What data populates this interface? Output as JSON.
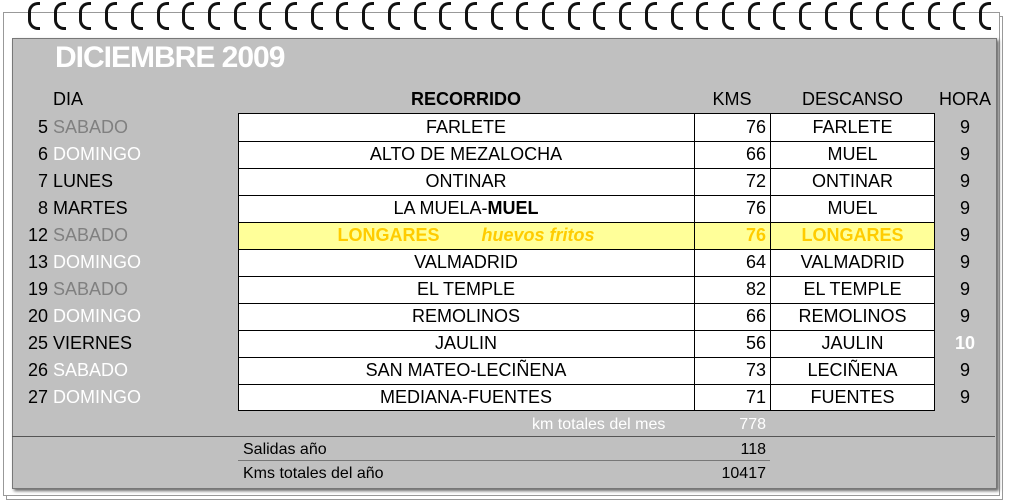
{
  "header": {
    "title": "DICIEMBRE 2009"
  },
  "columns": [
    "DIA",
    "RECORRIDO",
    "KMS",
    "DESCANSO",
    "HORA"
  ],
  "rows": [
    {
      "day": "5",
      "weekday": "SABADO",
      "weekday_color": "gray",
      "route": "FARLETE",
      "kms": "76",
      "rest": "FARLETE",
      "hora": "9"
    },
    {
      "day": "6",
      "weekday": "DOMINGO",
      "weekday_color": "white",
      "route": "ALTO DE MEZALOCHA",
      "kms": "66",
      "rest": "MUEL",
      "hora": "9"
    },
    {
      "day": "7",
      "weekday": "LUNES",
      "weekday_color": "black",
      "route": "ONTINAR",
      "kms": "72",
      "rest": "ONTINAR",
      "hora": "9"
    },
    {
      "day": "8",
      "weekday": "MARTES",
      "weekday_color": "black",
      "route": "LA MUELA-",
      "route_bold": "MUEL",
      "kms": "76",
      "rest": "MUEL",
      "hora": "9"
    },
    {
      "day": "12",
      "weekday": "SABADO",
      "weekday_color": "gray",
      "route": "LONGARES",
      "note": "huevos fritos",
      "highlight": true,
      "kms": "76",
      "rest": "LONGARES",
      "hora": "9"
    },
    {
      "day": "13",
      "weekday": "DOMINGO",
      "weekday_color": "white",
      "route": "VALMADRID",
      "kms": "64",
      "rest": "VALMADRID",
      "hora": "9"
    },
    {
      "day": "19",
      "weekday": "SABADO",
      "weekday_color": "gray",
      "route": "EL TEMPLE",
      "kms": "82",
      "rest": "EL TEMPLE",
      "hora": "9"
    },
    {
      "day": "20",
      "weekday": "DOMINGO",
      "weekday_color": "white",
      "route": "REMOLINOS",
      "kms": "66",
      "rest": "REMOLINOS",
      "hora": "9"
    },
    {
      "day": "25",
      "weekday": "VIERNES",
      "weekday_color": "black",
      "route": "JAULIN",
      "kms": "56",
      "rest": "JAULIN",
      "hora": "10",
      "hora_highlight": true
    },
    {
      "day": "26",
      "weekday": "SABADO",
      "weekday_color": "white",
      "route": "SAN MATEO-LECIÑENA",
      "kms": "73",
      "rest": "LECIÑENA",
      "hora": "9"
    },
    {
      "day": "27",
      "weekday": "DOMINGO",
      "weekday_color": "white",
      "route": "MEDIANA-FUENTES",
      "kms": "71",
      "rest": "FUENTES",
      "hora": "9"
    }
  ],
  "month_total": {
    "label": "km totales del mes",
    "value": "778"
  },
  "year_summary": [
    {
      "label": "Salidas año",
      "value": "118"
    },
    {
      "label": "Kms totales del año",
      "value": "10417"
    }
  ]
}
